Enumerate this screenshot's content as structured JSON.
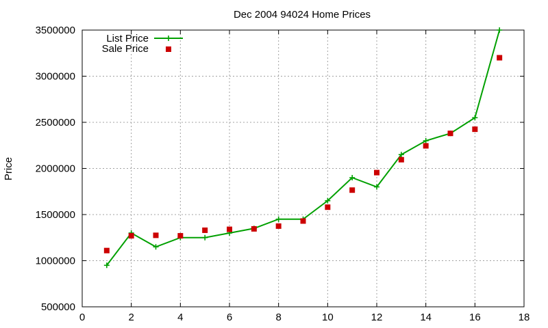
{
  "chart_data": {
    "type": "line",
    "title": "Dec 2004 94024 Home Prices",
    "xlabel": "",
    "ylabel": "Price",
    "xlim": [
      0,
      18
    ],
    "ylim": [
      500000,
      3500000
    ],
    "xticks": [
      0,
      2,
      4,
      6,
      8,
      10,
      12,
      14,
      16,
      18
    ],
    "yticks": [
      500000,
      1000000,
      1500000,
      2000000,
      2500000,
      3000000,
      3500000
    ],
    "grid": true,
    "legend_position": "top-left",
    "series": [
      {
        "name": "List Price",
        "style": "line-with-plus-markers",
        "color": "#00a000",
        "x": [
          1,
          2,
          3,
          4,
          5,
          6,
          7,
          8,
          9,
          10,
          11,
          12,
          13,
          14,
          15,
          16,
          17
        ],
        "y": [
          950000,
          1300000,
          1150000,
          1250000,
          1250000,
          1300000,
          1350000,
          1450000,
          1450000,
          1650000,
          1900000,
          1800000,
          2150000,
          2300000,
          2380000,
          2550000,
          3500000
        ]
      },
      {
        "name": "Sale Price",
        "style": "square-points",
        "color": "#cc0000",
        "x": [
          1,
          2,
          3,
          4,
          5,
          6,
          7,
          8,
          9,
          10,
          11,
          12,
          13,
          14,
          15,
          16,
          17
        ],
        "y": [
          1110000,
          1270000,
          1275000,
          1270000,
          1330000,
          1340000,
          1345000,
          1375000,
          1430000,
          1580000,
          1765000,
          1955000,
          2095000,
          2245000,
          2380000,
          2425000,
          3200000
        ]
      }
    ]
  }
}
